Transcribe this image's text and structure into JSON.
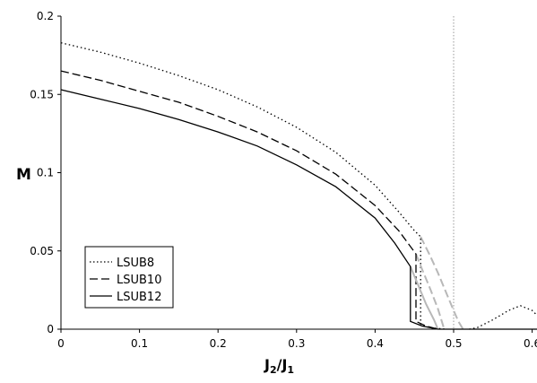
{
  "chart_data": {
    "type": "line",
    "title": "",
    "xlabel": {
      "base": "J",
      "sub1": "2",
      "sep": "/J",
      "sub2": "1"
    },
    "ylabel": "M",
    "xlim": [
      0,
      0.65
    ],
    "ylim": [
      0,
      0.2
    ],
    "xticks": [
      0,
      0.1,
      0.2,
      0.3,
      0.4,
      0.5,
      0.6
    ],
    "yticks": [
      0,
      0.05,
      0.1,
      0.15,
      0.2
    ],
    "xtick_labels": [
      "0",
      "0.1",
      "0.2",
      "0.3",
      "0.4",
      "0.5",
      "0.6"
    ],
    "ytick_labels": [
      "0",
      "0.05",
      "0.1",
      "0.15",
      "0.2"
    ],
    "vertical_reference_line": 0.5,
    "grid": false,
    "legend_position": "bottom-left",
    "series": [
      {
        "name": "LSUB8",
        "style": "dotted",
        "color": "#000000",
        "points": [
          [
            0,
            0.183
          ],
          [
            0.05,
            0.177
          ],
          [
            0.1,
            0.17
          ],
          [
            0.15,
            0.162
          ],
          [
            0.2,
            0.153
          ],
          [
            0.25,
            0.142
          ],
          [
            0.3,
            0.129
          ],
          [
            0.35,
            0.113
          ],
          [
            0.4,
            0.092
          ],
          [
            0.43,
            0.075
          ],
          [
            0.45,
            0.063
          ],
          [
            0.458,
            0.059
          ],
          [
            0.458,
            0.003
          ],
          [
            0.47,
            0.001
          ],
          [
            0.49,
            0.0
          ]
        ],
        "extension": {
          "style": "dashed",
          "color": "#b8b8b8",
          "points": [
            [
              0.458,
              0.059
            ],
            [
              0.47,
              0.047
            ],
            [
              0.48,
              0.036
            ],
            [
              0.49,
              0.024
            ],
            [
              0.5,
              0.012
            ],
            [
              0.506,
              0.005
            ],
            [
              0.512,
              0.0
            ]
          ]
        },
        "bump_points": [
          [
            0.52,
            0.0
          ],
          [
            0.53,
            0.001
          ],
          [
            0.55,
            0.006
          ],
          [
            0.57,
            0.012
          ],
          [
            0.585,
            0.015
          ],
          [
            0.6,
            0.012
          ],
          [
            0.61,
            0.007
          ],
          [
            0.62,
            0.002
          ],
          [
            0.63,
            0.0
          ]
        ]
      },
      {
        "name": "LSUB10",
        "style": "dashed",
        "color": "#000000",
        "points": [
          [
            0,
            0.165
          ],
          [
            0.05,
            0.159
          ],
          [
            0.1,
            0.152
          ],
          [
            0.15,
            0.145
          ],
          [
            0.2,
            0.136
          ],
          [
            0.25,
            0.126
          ],
          [
            0.3,
            0.114
          ],
          [
            0.35,
            0.099
          ],
          [
            0.4,
            0.079
          ],
          [
            0.43,
            0.063
          ],
          [
            0.452,
            0.048
          ],
          [
            0.452,
            0.005
          ],
          [
            0.465,
            0.002
          ],
          [
            0.48,
            0.0
          ]
        ],
        "extension": {
          "style": "dashed",
          "color": "#b8b8b8",
          "points": [
            [
              0.452,
              0.048
            ],
            [
              0.46,
              0.038
            ],
            [
              0.47,
              0.026
            ],
            [
              0.48,
              0.013
            ],
            [
              0.488,
              0.0
            ]
          ]
        }
      },
      {
        "name": "LSUB12",
        "style": "solid",
        "color": "#000000",
        "points": [
          [
            0,
            0.153
          ],
          [
            0.05,
            0.147
          ],
          [
            0.1,
            0.141
          ],
          [
            0.15,
            0.134
          ],
          [
            0.2,
            0.126
          ],
          [
            0.25,
            0.117
          ],
          [
            0.3,
            0.105
          ],
          [
            0.35,
            0.091
          ],
          [
            0.4,
            0.071
          ],
          [
            0.425,
            0.055
          ],
          [
            0.445,
            0.04
          ],
          [
            0.445,
            0.005
          ],
          [
            0.46,
            0.002
          ],
          [
            0.48,
            0.0
          ],
          [
            0.625,
            0.0
          ]
        ],
        "extension": {
          "style": "solid",
          "color": "#b8b8b8",
          "points": [
            [
              0.445,
              0.04
            ],
            [
              0.455,
              0.028
            ],
            [
              0.465,
              0.016
            ],
            [
              0.475,
              0.006
            ],
            [
              0.48,
              0.0
            ]
          ]
        }
      }
    ]
  }
}
